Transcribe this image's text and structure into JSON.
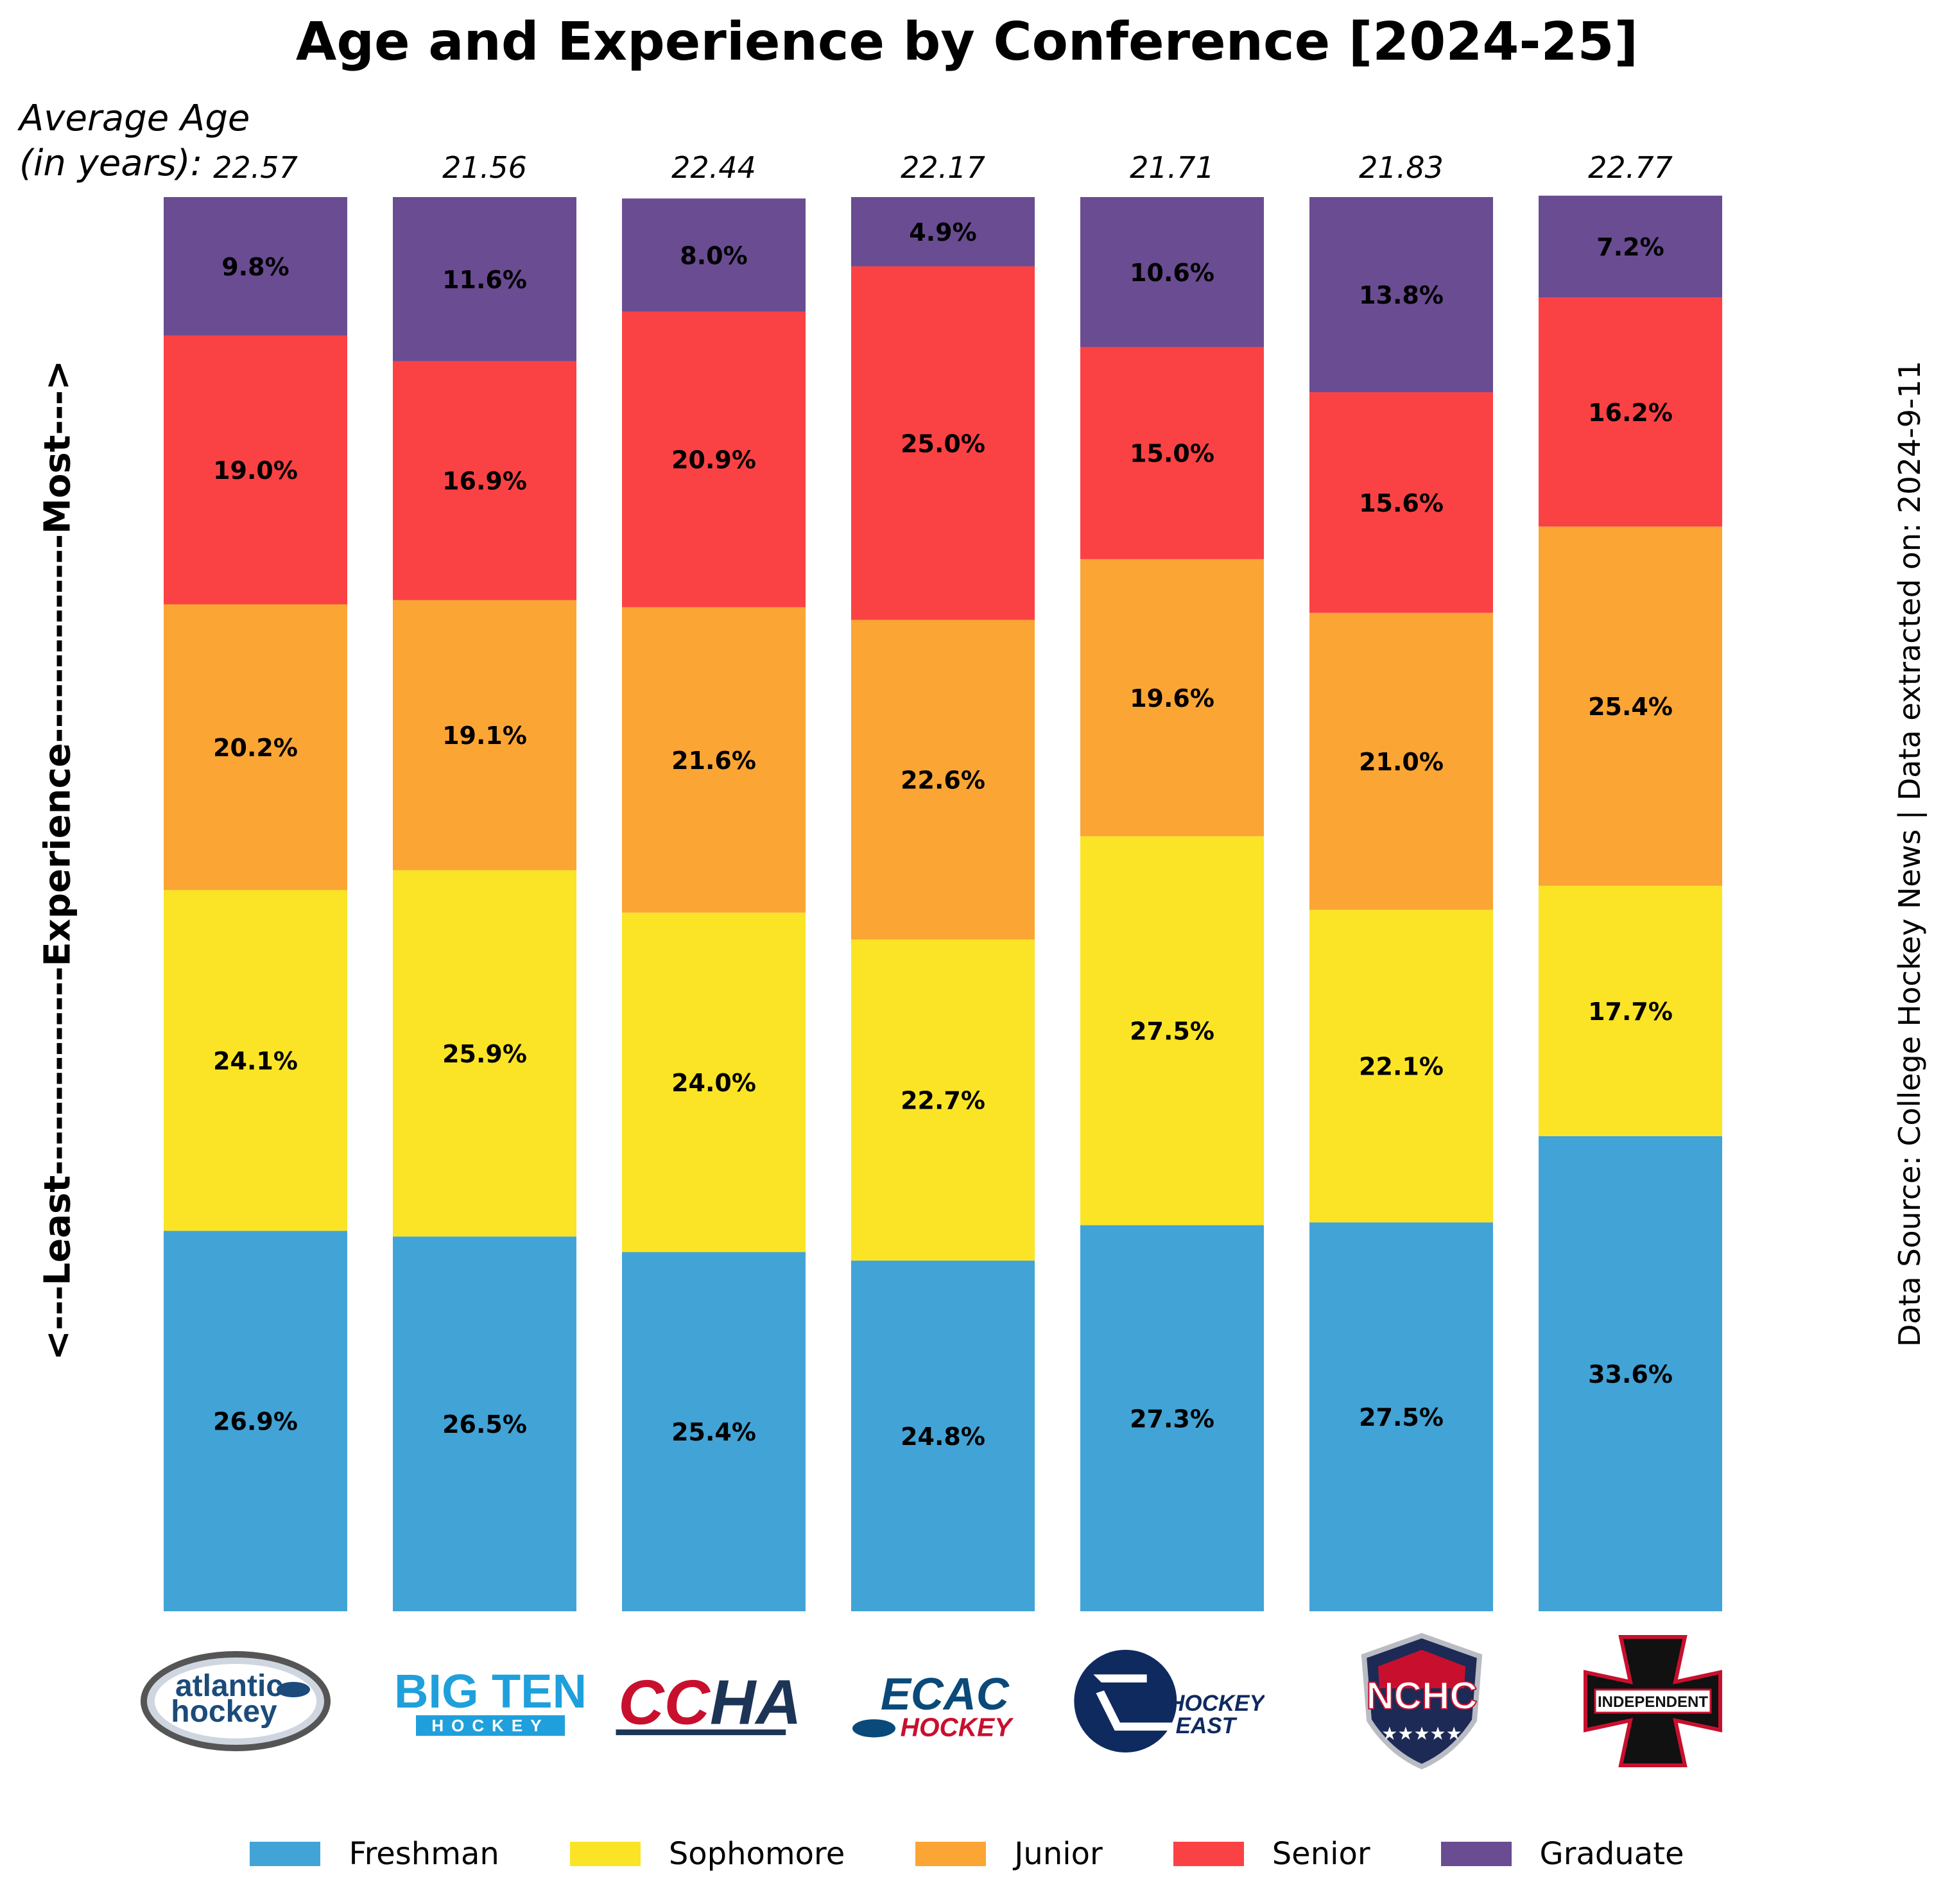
{
  "chart_data": {
    "type": "bar",
    "stacked": true,
    "title": "Age and Experience by Conference [2024-25]",
    "average_age_label": "Average Age\n(in years):",
    "ylabel": "<---Least--------------Experience--------------Most--->",
    "source": "Data Source: College Hockey News | Data extracted on: 2024-9-11",
    "categories": [
      "atlantic hockey",
      "BIG TEN HOCKEY",
      "CCHA",
      "ECAC HOCKEY",
      "HOCKEY EAST",
      "NCHC",
      "INDEPENDENT"
    ],
    "average_age": [
      "22.57",
      "21.56",
      "22.44",
      "22.17",
      "21.71",
      "21.83",
      "22.77"
    ],
    "series": [
      {
        "name": "Freshman",
        "color": "#42a3d6",
        "values": [
          26.9,
          26.5,
          25.4,
          24.8,
          27.3,
          27.5,
          33.6
        ],
        "labels": [
          "26.9%",
          "26.5%",
          "25.4%",
          "24.8%",
          "27.3%",
          "27.5%",
          "33.6%"
        ]
      },
      {
        "name": "Sophomore",
        "color": "#fbe426",
        "values": [
          24.1,
          25.9,
          24.0,
          22.7,
          27.5,
          22.1,
          17.7
        ],
        "labels": [
          "24.1%",
          "25.9%",
          "24.0%",
          "22.7%",
          "27.5%",
          "22.1%",
          "17.7%"
        ]
      },
      {
        "name": "Junior",
        "color": "#fba535",
        "values": [
          20.2,
          19.1,
          21.6,
          22.6,
          19.6,
          21.0,
          25.4
        ],
        "labels": [
          "20.2%",
          "19.1%",
          "21.6%",
          "22.6%",
          "19.6%",
          "21.0%",
          "25.4%"
        ]
      },
      {
        "name": "Senior",
        "color": "#fa4244",
        "values": [
          19.0,
          16.9,
          20.9,
          25.0,
          15.0,
          15.6,
          16.2
        ],
        "labels": [
          "19.0%",
          "16.9%",
          "20.9%",
          "25.0%",
          "15.0%",
          "15.6%",
          "16.2%"
        ]
      },
      {
        "name": "Graduate",
        "color": "#6a4c92",
        "values": [
          9.8,
          11.6,
          8.0,
          4.9,
          10.6,
          13.8,
          7.2
        ],
        "labels": [
          "9.8%",
          "11.6%",
          "8.0%",
          "4.9%",
          "10.6%",
          "13.8%",
          "7.2%"
        ]
      }
    ],
    "ylim": [
      0,
      100
    ],
    "grid": false,
    "legend_position": "bottom"
  },
  "logos": [
    {
      "lines": [
        "atlantic",
        "hockey"
      ],
      "icon": "atlantic-hockey-logo"
    },
    {
      "lines": [
        "BIG TEN",
        "HOCKEY"
      ],
      "icon": "big-ten-logo"
    },
    {
      "lines": [
        "CCHA"
      ],
      "icon": "ccha-logo"
    },
    {
      "lines": [
        "ECAC",
        "HOCKEY"
      ],
      "icon": "ecac-logo"
    },
    {
      "lines": [
        "HOCKEY",
        "EAST"
      ],
      "icon": "hockey-east-logo"
    },
    {
      "lines": [
        "NCHC"
      ],
      "icon": "nchc-logo"
    },
    {
      "lines": [
        "INDEPENDENT"
      ],
      "icon": "independent-logo"
    }
  ]
}
